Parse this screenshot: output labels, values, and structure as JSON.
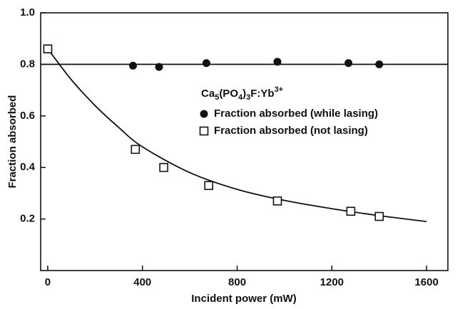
{
  "chart_data": {
    "type": "scatter",
    "xlabel": "Incident power (mW)",
    "ylabel": "Fraction absorbed",
    "xlim": [
      -30,
      1690
    ],
    "ylim": [
      0,
      1.0
    ],
    "xticks": [
      0,
      400,
      800,
      1200,
      1600
    ],
    "yticks": [
      0.2,
      0.4,
      0.6,
      0.8,
      {
        "value": 1.0,
        "label": "1.0"
      }
    ],
    "legend_title": [
      {
        "text": "Ca"
      },
      {
        "text": "5",
        "sub": true
      },
      {
        "text": "(PO"
      },
      {
        "text": "4",
        "sub": true
      },
      {
        "text": ")"
      },
      {
        "text": "3",
        "sub": true
      },
      {
        "text": "F:Yb"
      },
      {
        "text": "3+",
        "sup": true
      }
    ],
    "series": [
      {
        "name": "Fraction absorbed (while lasing)",
        "marker": "filled-circle",
        "color": "#111111",
        "x": [
          360,
          470,
          670,
          970,
          1270,
          1400
        ],
        "values": [
          0.795,
          0.79,
          0.805,
          0.81,
          0.805,
          0.8
        ],
        "fit": {
          "x": [
            -30,
            1690
          ],
          "values": [
            0.8,
            0.8
          ]
        }
      },
      {
        "name": "Fraction absorbed (not lasing)",
        "marker": "open-square",
        "color": "#111111",
        "x": [
          0,
          370,
          490,
          680,
          970,
          1280,
          1400
        ],
        "values": [
          0.86,
          0.47,
          0.4,
          0.33,
          0.27,
          0.23,
          0.21
        ],
        "fit": {
          "x": [
            0,
            100,
            200,
            300,
            400,
            600,
            800,
            1000,
            1200,
            1400,
            1600
          ],
          "values": [
            0.86,
            0.74,
            0.64,
            0.555,
            0.48,
            0.38,
            0.315,
            0.272,
            0.24,
            0.213,
            0.19
          ]
        }
      }
    ]
  }
}
